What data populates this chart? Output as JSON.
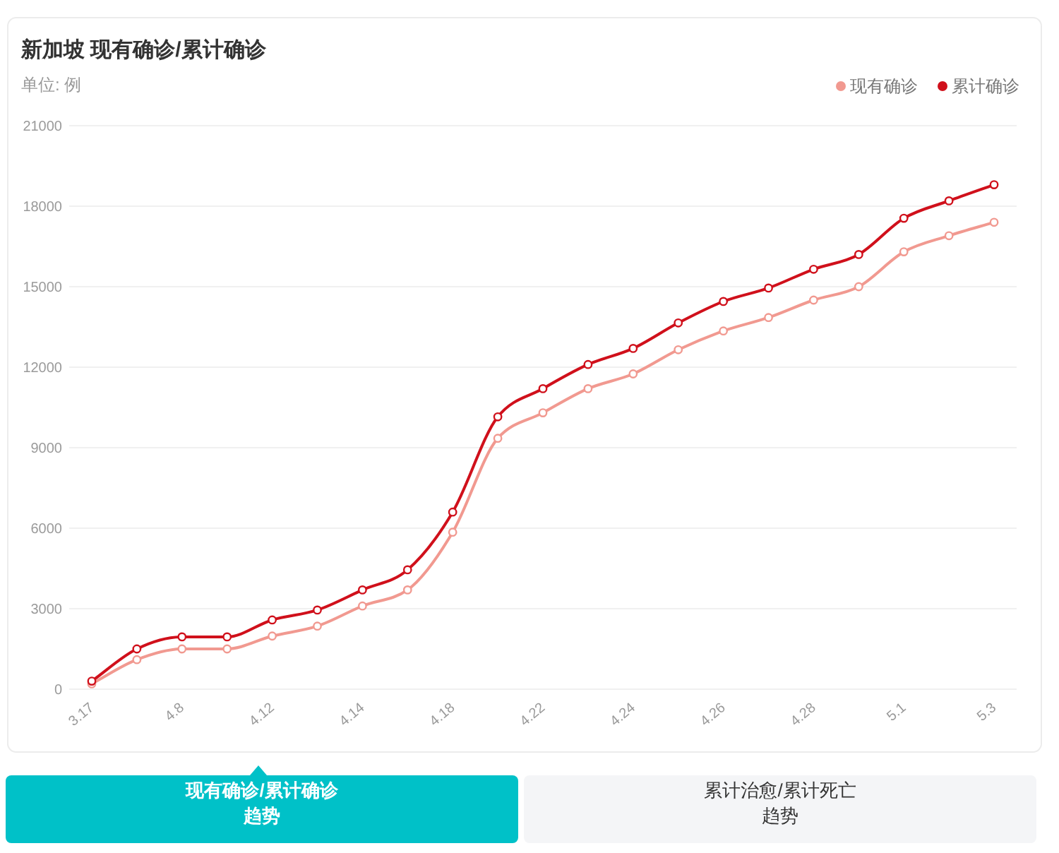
{
  "chart_data": {
    "type": "line",
    "title": "新加坡 现有确诊/累计确诊",
    "subtitle": "单位: 例",
    "categories": [
      "3.17",
      null,
      "4.8",
      null,
      "4.12",
      null,
      "4.14",
      null,
      "4.18",
      null,
      "4.22",
      null,
      "4.24",
      null,
      "4.26",
      null,
      "4.28",
      null,
      "5.1",
      null,
      "5.3"
    ],
    "series": [
      {
        "name": "现有确诊",
        "color": "#f19990",
        "values": [
          200,
          1100,
          1500,
          1500,
          1980,
          2350,
          3100,
          3700,
          5850,
          9350,
          10300,
          11200,
          11750,
          12650,
          13350,
          13850,
          14500,
          15000,
          16300,
          16900,
          17400
        ]
      },
      {
        "name": "累计确诊",
        "color": "#d0101b",
        "values": [
          300,
          1500,
          1950,
          1950,
          2580,
          2950,
          3700,
          4450,
          6600,
          10150,
          11200,
          12100,
          12700,
          13650,
          14450,
          14950,
          15650,
          16200,
          17550,
          18200,
          18800
        ]
      }
    ],
    "ylim": [
      0,
      21000
    ],
    "yticks": [
      0,
      3000,
      6000,
      9000,
      12000,
      15000,
      18000,
      21000
    ],
    "grid": "y",
    "legend": "top right",
    "marker": "circle",
    "annotations": [
      "现有确诊/累计确诊趋势",
      "累计治愈/累计死亡趋势"
    ]
  }
}
